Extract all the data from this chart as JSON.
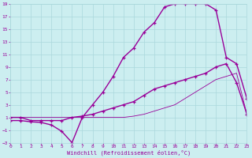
{
  "xlabel": "Windchill (Refroidissement éolien,°C)",
  "xlim": [
    0,
    23
  ],
  "ylim": [
    -3,
    19
  ],
  "xticks": [
    0,
    1,
    2,
    3,
    4,
    5,
    6,
    7,
    8,
    9,
    10,
    11,
    12,
    13,
    14,
    15,
    16,
    17,
    18,
    19,
    20,
    21,
    22,
    23
  ],
  "yticks": [
    -3,
    -1,
    1,
    3,
    5,
    7,
    9,
    11,
    13,
    15,
    17,
    19
  ],
  "bg_color": "#cceef0",
  "line_color": "#990099",
  "grid_color": "#aad8dc",
  "line1_x": [
    0,
    1,
    2,
    3,
    4,
    5,
    6,
    7,
    8,
    9,
    10,
    11,
    12,
    13,
    14,
    15,
    16,
    17,
    18,
    19,
    20,
    21,
    22,
    23
  ],
  "line1_y": [
    0.5,
    0.5,
    0.3,
    0.2,
    -0.2,
    -1.2,
    -3.0,
    1.0,
    3.0,
    5.0,
    7.5,
    10.5,
    12.0,
    14.5,
    16.0,
    18.5,
    19.0,
    19.0,
    19.0,
    19.0,
    18.0,
    10.5,
    9.5,
    4.0
  ],
  "line2_x": [
    0,
    1,
    2,
    3,
    4,
    5,
    6,
    7,
    8,
    9,
    10,
    11,
    12,
    13,
    14,
    15,
    16,
    17,
    18,
    19,
    20,
    21,
    22,
    23
  ],
  "line2_y": [
    1.0,
    1.0,
    0.5,
    0.5,
    0.5,
    0.5,
    1.0,
    1.2,
    1.5,
    2.0,
    2.5,
    3.0,
    3.5,
    4.5,
    5.5,
    6.0,
    6.5,
    7.0,
    7.5,
    8.0,
    9.0,
    9.5,
    6.5,
    1.5
  ],
  "line3_x": [
    0,
    1,
    2,
    3,
    4,
    5,
    6,
    7,
    8,
    9,
    10,
    11,
    12,
    13,
    14,
    15,
    16,
    17,
    18,
    19,
    20,
    21,
    22,
    23
  ],
  "line3_y": [
    1.0,
    1.0,
    1.0,
    1.0,
    1.0,
    1.0,
    1.0,
    1.0,
    1.0,
    1.0,
    1.0,
    1.0,
    1.2,
    1.5,
    2.0,
    2.5,
    3.0,
    4.0,
    5.0,
    6.0,
    7.0,
    7.5,
    8.0,
    1.5
  ]
}
